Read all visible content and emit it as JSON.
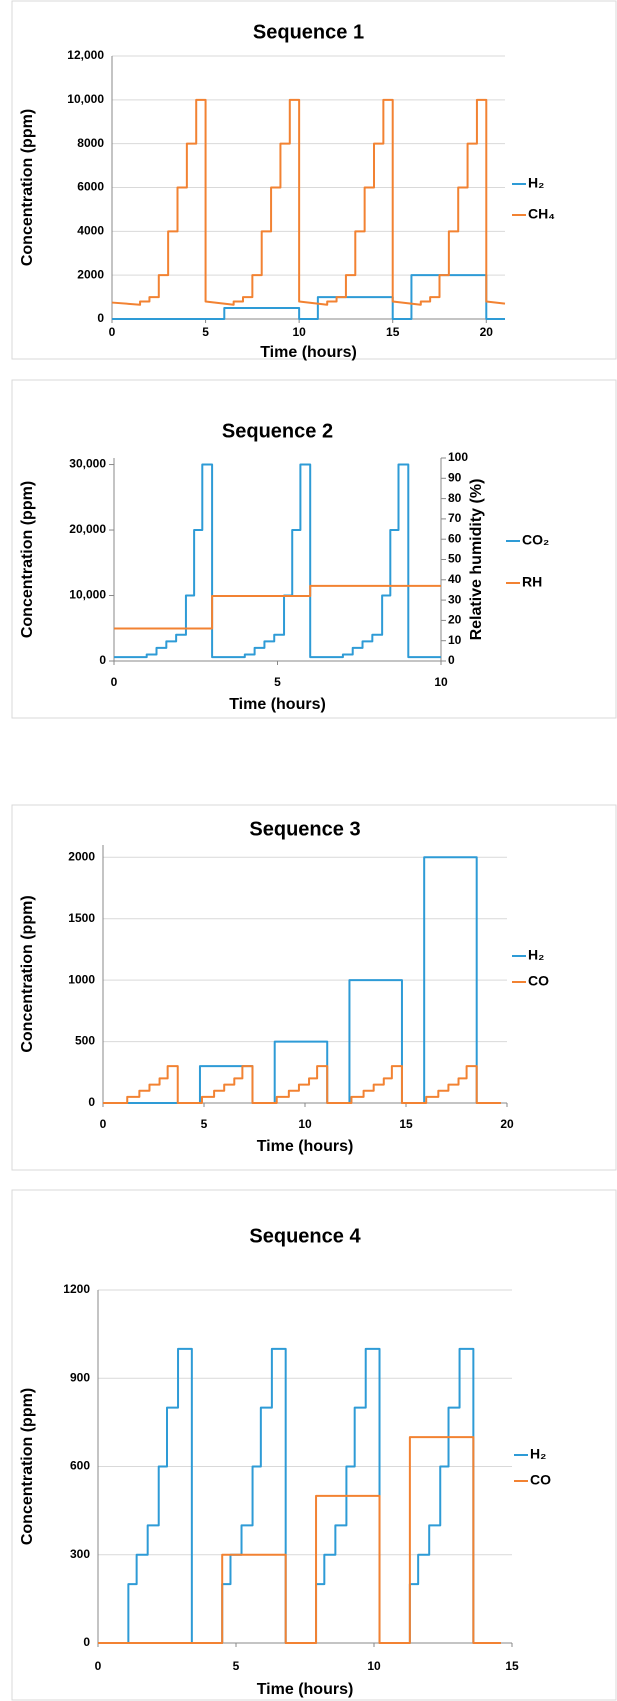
{
  "chart_data": [
    {
      "type": "line",
      "title": "Sequence 1",
      "x_label": "Time (hours)",
      "y_label": "Concentration (ppm)",
      "grid": true,
      "xlim": [
        0,
        21
      ],
      "ylim": [
        0,
        12000
      ],
      "xticks": [
        0,
        5,
        10,
        15,
        20
      ],
      "yticks": [
        0,
        2000,
        4000,
        6000,
        8000,
        {
          "value": 10000,
          "label": "10,000"
        },
        {
          "value": 12000,
          "label": "12,000"
        }
      ],
      "series": [
        {
          "name": "H₂",
          "color": "#2e9bd6",
          "x": [
            0,
            6,
            6,
            10,
            10,
            11,
            11,
            15,
            15,
            16,
            16,
            20,
            20,
            21
          ],
          "values": [
            0,
            0,
            500,
            500,
            0,
            0,
            1000,
            1000,
            0,
            0,
            2000,
            2000,
            0,
            0
          ]
        },
        {
          "name": "CH₄",
          "color": "#f28232",
          "x": [
            0,
            1.5,
            1.5,
            2,
            2,
            2.5,
            2.5,
            3,
            3,
            3.5,
            3.5,
            4,
            4,
            4.5,
            4.5,
            5,
            5,
            6.5,
            6.5,
            7,
            7,
            7.5,
            7.5,
            8,
            8,
            8.5,
            8.5,
            9,
            9,
            9.5,
            9.5,
            10,
            10,
            11.5,
            11.5,
            12,
            12,
            12.5,
            12.5,
            13,
            13,
            13.5,
            13.5,
            14,
            14,
            14.5,
            14.5,
            15,
            15,
            16.5,
            16.5,
            17,
            17,
            17.5,
            17.5,
            18,
            18,
            18.5,
            18.5,
            19,
            19,
            19.5,
            19.5,
            20,
            20,
            21
          ],
          "values": [
            750,
            650,
            800,
            800,
            1000,
            1000,
            2000,
            2000,
            4000,
            4000,
            6000,
            6000,
            8000,
            8000,
            10000,
            10000,
            800,
            650,
            800,
            800,
            1000,
            1000,
            2000,
            2000,
            4000,
            4000,
            6000,
            6000,
            8000,
            8000,
            10000,
            10000,
            800,
            650,
            800,
            800,
            1000,
            1000,
            2000,
            2000,
            4000,
            4000,
            6000,
            6000,
            8000,
            8000,
            10000,
            10000,
            800,
            650,
            800,
            800,
            1000,
            1000,
            2000,
            2000,
            4000,
            4000,
            6000,
            6000,
            8000,
            8000,
            10000,
            10000,
            800,
            700
          ]
        }
      ]
    },
    {
      "type": "line",
      "title": "Sequence 2",
      "x_label": "Time (hours)",
      "y_label": "Concentration (ppm)",
      "y2_label": "Relative humidity (%)",
      "grid": false,
      "xlim": [
        0,
        10
      ],
      "ylim": [
        0,
        31000
      ],
      "y2lim": [
        0,
        100
      ],
      "xticks": [
        0,
        5,
        10
      ],
      "yticks": [
        0,
        {
          "value": 10000,
          "label": "10,000"
        },
        {
          "value": 20000,
          "label": "20,000"
        },
        {
          "value": 30000,
          "label": "30,000"
        }
      ],
      "y2ticks": [
        0,
        10,
        20,
        30,
        40,
        50,
        60,
        70,
        80,
        90,
        100
      ],
      "series": [
        {
          "name": "CO₂",
          "color": "#2e9bd6",
          "x": [
            0,
            1,
            1,
            1.3,
            1.3,
            1.6,
            1.6,
            1.9,
            1.9,
            2.2,
            2.2,
            2.45,
            2.45,
            2.7,
            2.7,
            3,
            3,
            4,
            4,
            4.3,
            4.3,
            4.6,
            4.6,
            4.9,
            4.9,
            5.2,
            5.2,
            5.45,
            5.45,
            5.7,
            5.7,
            6,
            6,
            7,
            7,
            7.3,
            7.3,
            7.6,
            7.6,
            7.9,
            7.9,
            8.2,
            8.2,
            8.45,
            8.45,
            8.7,
            8.7,
            9,
            9,
            10
          ],
          "values": [
            600,
            600,
            1000,
            1000,
            2000,
            2000,
            3000,
            3000,
            4000,
            4000,
            10000,
            10000,
            20000,
            20000,
            30000,
            30000,
            600,
            600,
            1000,
            1000,
            2000,
            2000,
            3000,
            3000,
            4000,
            4000,
            10000,
            10000,
            20000,
            20000,
            30000,
            30000,
            600,
            600,
            1000,
            1000,
            2000,
            2000,
            3000,
            3000,
            4000,
            4000,
            10000,
            10000,
            20000,
            20000,
            30000,
            30000,
            600,
            600
          ]
        },
        {
          "name": "RH",
          "color": "#f28232",
          "axis": "y2",
          "x": [
            0,
            3,
            3,
            6,
            6,
            10
          ],
          "values": [
            16,
            16,
            32,
            32,
            37,
            37
          ]
        }
      ]
    },
    {
      "type": "line",
      "title": "Sequence 3",
      "x_label": "Time (hours)",
      "y_label": "Concentration (ppm)",
      "grid": true,
      "xlim": [
        0,
        20
      ],
      "ylim": [
        0,
        2100
      ],
      "xticks": [
        0,
        5,
        10,
        15,
        20
      ],
      "yticks": [
        0,
        500,
        1000,
        1500,
        2000
      ],
      "series": [
        {
          "name": "H₂",
          "color": "#2e9bd6",
          "x": [
            0,
            4.8,
            4.8,
            7.4,
            7.4,
            8.5,
            8.5,
            11.1,
            11.1,
            12.2,
            12.2,
            14.8,
            14.8,
            15.9,
            15.9,
            18.5,
            18.5,
            19.7
          ],
          "values": [
            0,
            0,
            300,
            300,
            0,
            0,
            500,
            500,
            0,
            0,
            1000,
            1000,
            0,
            0,
            2000,
            2000,
            0,
            0
          ]
        },
        {
          "name": "CO",
          "color": "#f28232",
          "x": [
            0,
            1.2,
            1.2,
            1.8,
            1.8,
            2.3,
            2.3,
            2.8,
            2.8,
            3.2,
            3.2,
            3.7,
            3.7,
            4.9,
            4.9,
            5.5,
            5.5,
            6,
            6,
            6.5,
            6.5,
            6.9,
            6.9,
            7.4,
            7.4,
            8.6,
            8.6,
            9.2,
            9.2,
            9.7,
            9.7,
            10.2,
            10.2,
            10.6,
            10.6,
            11.1,
            11.1,
            12.3,
            12.3,
            12.9,
            12.9,
            13.4,
            13.4,
            13.9,
            13.9,
            14.3,
            14.3,
            14.8,
            14.8,
            16,
            16,
            16.6,
            16.6,
            17.1,
            17.1,
            17.6,
            17.6,
            18,
            18,
            18.5,
            18.5,
            19.7
          ],
          "values": [
            0,
            0,
            50,
            50,
            100,
            100,
            150,
            150,
            200,
            200,
            300,
            300,
            0,
            0,
            50,
            50,
            100,
            100,
            150,
            150,
            200,
            200,
            300,
            300,
            0,
            0,
            50,
            50,
            100,
            100,
            150,
            150,
            200,
            200,
            300,
            300,
            0,
            0,
            50,
            50,
            100,
            100,
            150,
            150,
            200,
            200,
            300,
            300,
            0,
            0,
            50,
            50,
            100,
            100,
            150,
            150,
            200,
            200,
            300,
            300,
            0,
            0
          ]
        }
      ]
    },
    {
      "type": "line",
      "title": "Sequence 4",
      "x_label": "Time (hours)",
      "y_label": "Concentration (ppm)",
      "grid": true,
      "xlim": [
        0,
        15
      ],
      "ylim": [
        0,
        1200
      ],
      "xticks": [
        0,
        5,
        10,
        15
      ],
      "yticks": [
        0,
        300,
        600,
        900,
        1200
      ],
      "series": [
        {
          "name": "H₂",
          "color": "#2e9bd6",
          "x": [
            0,
            1.1,
            1.1,
            1.4,
            1.4,
            1.8,
            1.8,
            2.2,
            2.2,
            2.5,
            2.5,
            2.9,
            2.9,
            3.4,
            3.4,
            4.5,
            4.5,
            4.8,
            4.8,
            5.2,
            5.2,
            5.6,
            5.6,
            5.9,
            5.9,
            6.3,
            6.3,
            6.8,
            6.8,
            7.9,
            7.9,
            8.2,
            8.2,
            8.6,
            8.6,
            9,
            9,
            9.3,
            9.3,
            9.7,
            9.7,
            10.2,
            10.2,
            11.3,
            11.3,
            11.6,
            11.6,
            12,
            12,
            12.4,
            12.4,
            12.7,
            12.7,
            13.1,
            13.1,
            13.6,
            13.6,
            14.6
          ],
          "values": [
            0,
            0,
            200,
            200,
            300,
            300,
            400,
            400,
            600,
            600,
            800,
            800,
            1000,
            1000,
            0,
            0,
            200,
            200,
            300,
            300,
            400,
            400,
            600,
            600,
            800,
            800,
            1000,
            1000,
            0,
            0,
            200,
            200,
            300,
            300,
            400,
            400,
            600,
            600,
            800,
            800,
            1000,
            1000,
            0,
            0,
            200,
            200,
            300,
            300,
            400,
            400,
            600,
            600,
            800,
            800,
            1000,
            1000,
            0,
            0
          ]
        },
        {
          "name": "CO",
          "color": "#f28232",
          "x": [
            0,
            4.5,
            4.5,
            6.8,
            6.8,
            7.9,
            7.9,
            10.2,
            10.2,
            11.3,
            11.3,
            13.6,
            13.6,
            14.6
          ],
          "values": [
            0,
            0,
            300,
            300,
            0,
            0,
            500,
            500,
            0,
            0,
            700,
            700,
            0,
            0
          ]
        }
      ]
    }
  ]
}
